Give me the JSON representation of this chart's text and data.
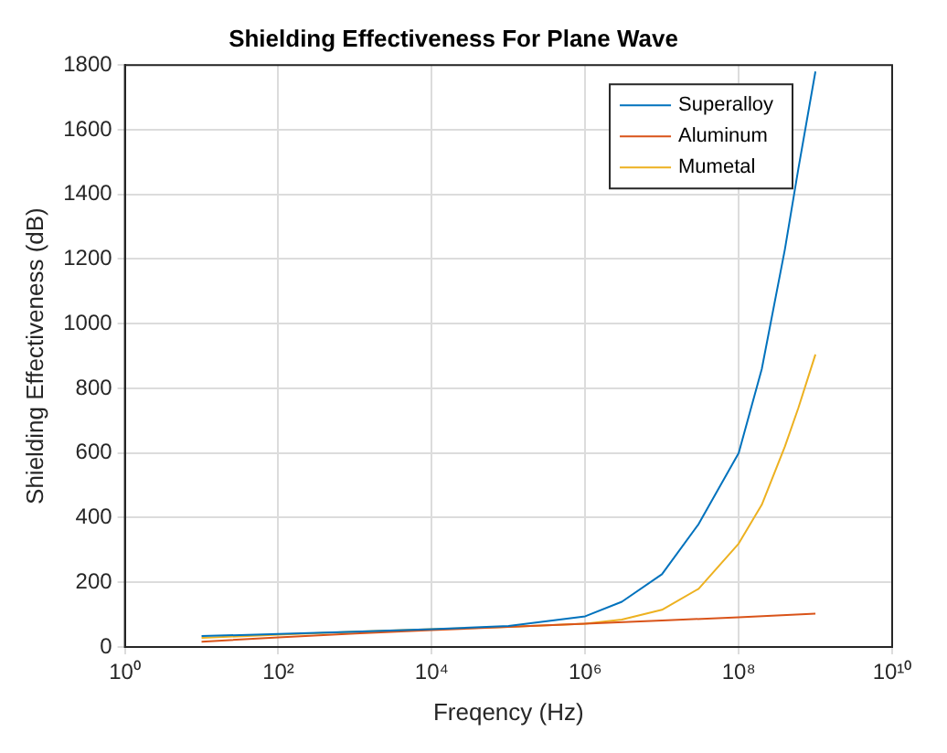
{
  "chart_data": {
    "type": "line",
    "title": "Shielding Effectiveness For Plane Wave",
    "xlabel": "Freqency (Hz)",
    "ylabel": "Shielding Effectiveness (dB)",
    "log": "x",
    "xlim": [
      1,
      10000000000
    ],
    "xticks": [
      {
        "value": 1,
        "label": "10⁰"
      },
      {
        "value": 100,
        "label": "10²"
      },
      {
        "value": 10000,
        "label": "10⁴"
      },
      {
        "value": 1000000,
        "label": "10⁶"
      },
      {
        "value": 100000000,
        "label": "10⁸"
      },
      {
        "value": 10000000000,
        "label": "10¹⁰"
      }
    ],
    "ylim": [
      0,
      1800
    ],
    "yticks": [
      0,
      200,
      400,
      600,
      800,
      1000,
      1200,
      1400,
      1600,
      1800
    ],
    "grid": true,
    "legend": "top right",
    "marker": "none",
    "line_style": "solid",
    "series": [
      {
        "name": "Superalloy",
        "color": "#0072bd",
        "x": [
          10,
          100,
          1000,
          10000,
          100000,
          1000000,
          3000000,
          10000000,
          30000000,
          100000000,
          200000000,
          400000000,
          600000000,
          1000000000
        ],
        "values": [
          34,
          40,
          47,
          55,
          65,
          95,
          140,
          225,
          380,
          600,
          860,
          1230,
          1480,
          1780
        ]
      },
      {
        "name": "Aluminum",
        "color": "#d95319",
        "x": [
          10,
          100,
          1000,
          10000,
          100000,
          1000000,
          10000000,
          100000000,
          1000000000
        ],
        "values": [
          16,
          30,
          42,
          52,
          62,
          72,
          82,
          92,
          103
        ]
      },
      {
        "name": "Mumetal",
        "color": "#edb120",
        "x": [
          10,
          100,
          1000,
          10000,
          100000,
          1000000,
          3000000,
          10000000,
          30000000,
          100000000,
          200000000,
          400000000,
          600000000,
          1000000000
        ],
        "values": [
          28,
          38,
          47,
          55,
          62,
          72,
          85,
          115,
          180,
          320,
          440,
          620,
          740,
          905
        ]
      }
    ]
  }
}
